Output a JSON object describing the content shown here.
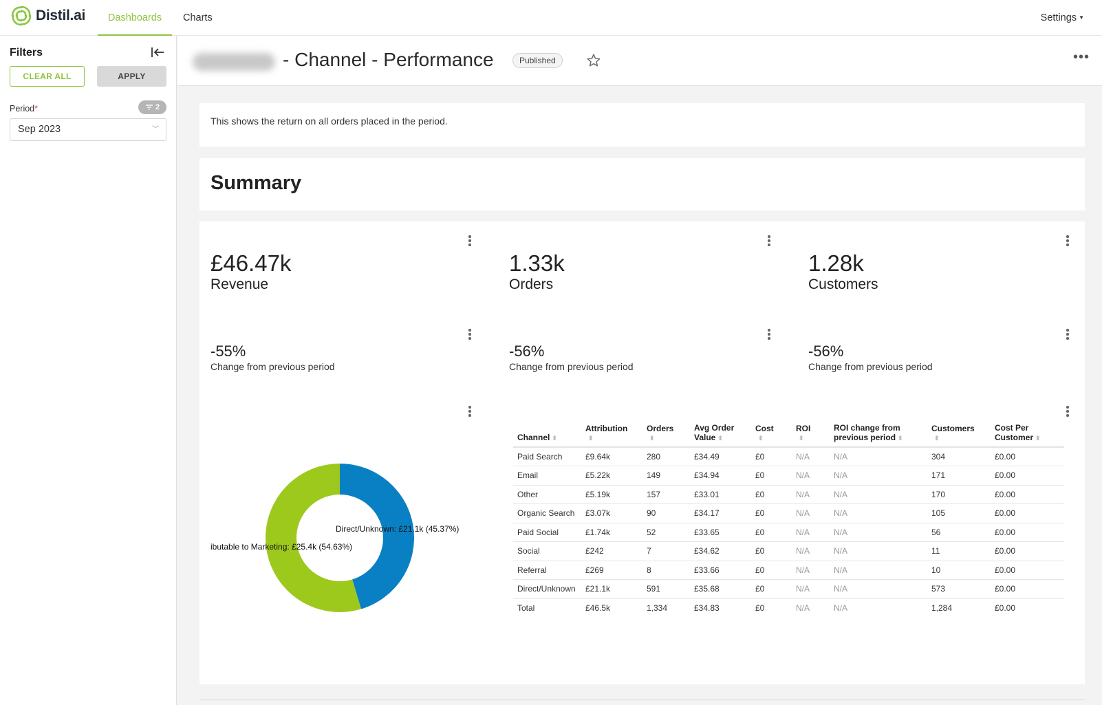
{
  "app": {
    "name": "Distil.ai",
    "brand_color": "#8cc63f"
  },
  "nav": {
    "tabs": [
      {
        "label": "Dashboards",
        "active": true
      },
      {
        "label": "Charts",
        "active": false
      }
    ],
    "settings_label": "Settings"
  },
  "sidebar": {
    "title": "Filters",
    "clear_label": "CLEAR ALL",
    "apply_label": "APPLY",
    "period_label": "Period",
    "required_mark": "*",
    "filter_count": "2",
    "period_value": "Sep 2023"
  },
  "header": {
    "title": "- Channel - Performance",
    "status_badge": "Published"
  },
  "description": "This shows the return on all orders placed in the period.",
  "summary_title": "Summary",
  "kpis": [
    {
      "value": "£46.47k",
      "label": "Revenue"
    },
    {
      "value": "1.33k",
      "label": "Orders"
    },
    {
      "value": "1.28k",
      "label": "Customers"
    }
  ],
  "changes": [
    {
      "value": "-55%",
      "label": "Change from previous period"
    },
    {
      "value": "-56%",
      "label": "Change from previous period"
    },
    {
      "value": "-56%",
      "label": "Change from previous period"
    }
  ],
  "chart_data": {
    "type": "pie",
    "subtype": "donut",
    "slices": [
      {
        "label": "Direct/Unknown: £21.1k (45.37%)",
        "name": "Direct/Unknown",
        "value": 21.1,
        "percent": 45.37,
        "color": "#0a80c4"
      },
      {
        "label": "ibutable to Marketing: £25.4k (54.63%)",
        "name": "Attributable to Marketing",
        "value": 25.4,
        "percent": 54.63,
        "color": "#9dc91d"
      }
    ]
  },
  "table": {
    "columns": [
      "Channel",
      "Attribution",
      "Orders",
      "Avg Order Value",
      "Cost",
      "ROI",
      "ROI change from previous period",
      "Customers",
      "Cost Per Customer"
    ],
    "rows": [
      [
        "Paid Search",
        "£9.64k",
        "280",
        "£34.49",
        "£0",
        "N/A",
        "N/A",
        "304",
        "£0.00"
      ],
      [
        "Email",
        "£5.22k",
        "149",
        "£34.94",
        "£0",
        "N/A",
        "N/A",
        "171",
        "£0.00"
      ],
      [
        "Other",
        "£5.19k",
        "157",
        "£33.01",
        "£0",
        "N/A",
        "N/A",
        "170",
        "£0.00"
      ],
      [
        "Organic Search",
        "£3.07k",
        "90",
        "£34.17",
        "£0",
        "N/A",
        "N/A",
        "105",
        "£0.00"
      ],
      [
        "Paid Social",
        "£1.74k",
        "52",
        "£33.65",
        "£0",
        "N/A",
        "N/A",
        "56",
        "£0.00"
      ],
      [
        "Social",
        "£242",
        "7",
        "£34.62",
        "£0",
        "N/A",
        "N/A",
        "11",
        "£0.00"
      ],
      [
        "Referral",
        "£269",
        "8",
        "£33.66",
        "£0",
        "N/A",
        "N/A",
        "10",
        "£0.00"
      ],
      [
        "Direct/Unknown",
        "£21.1k",
        "591",
        "£35.68",
        "£0",
        "N/A",
        "N/A",
        "573",
        "£0.00"
      ],
      [
        "Total",
        "£46.5k",
        "1,334",
        "£34.83",
        "£0",
        "N/A",
        "N/A",
        "1,284",
        "£0.00"
      ]
    ]
  }
}
